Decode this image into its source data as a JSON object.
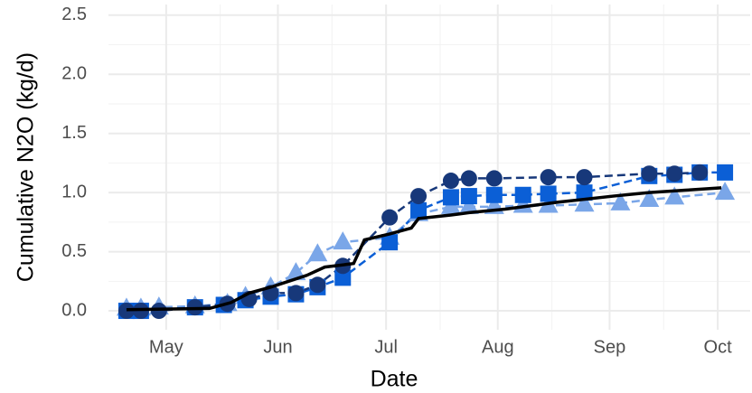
{
  "chart_data": {
    "type": "line",
    "x_label": "Date",
    "y_label": "Cumulative N2O (kg/d)",
    "xlim": [
      105,
      283
    ],
    "ylim": [
      -0.16,
      2.59
    ],
    "xticks": [
      {
        "value": 121,
        "label": "May"
      },
      {
        "value": 152,
        "label": "Jun"
      },
      {
        "value": 182,
        "label": "Jul"
      },
      {
        "value": 213,
        "label": "Aug"
      },
      {
        "value": 244,
        "label": "Sep"
      },
      {
        "value": 274,
        "label": "Oct"
      }
    ],
    "xticks_minor": [
      136,
      167,
      197,
      228,
      259
    ],
    "yticks": [
      {
        "value": 0,
        "label": "0.0"
      },
      {
        "value": 0.5,
        "label": "0.5"
      },
      {
        "value": 1,
        "label": "1.0"
      },
      {
        "value": 1.5,
        "label": "1.5"
      },
      {
        "value": 2,
        "label": "2.0"
      },
      {
        "value": 2.5,
        "label": "2.5"
      }
    ],
    "yticks_minor": [
      0.25,
      0.75,
      1.25,
      1.75,
      2.25
    ],
    "grid": true,
    "series": [
      {
        "color": "#7aa6e8",
        "marker": "triangle",
        "dash": true,
        "x": [
          110,
          114,
          119,
          129,
          138,
          143,
          150,
          157,
          163,
          170,
          183,
          191,
          200,
          205,
          212,
          220,
          227,
          237,
          247,
          255,
          262,
          276
        ],
        "values": [
          0.02,
          0.02,
          0.03,
          0.04,
          0.06,
          0.12,
          0.2,
          0.32,
          0.48,
          0.58,
          0.62,
          0.82,
          0.88,
          0.88,
          0.88,
          0.89,
          0.89,
          0.9,
          0.91,
          0.94,
          0.96,
          1.0
        ]
      },
      {
        "color": "#0b5fd6",
        "marker": "square",
        "dash": true,
        "x": [
          110,
          114,
          129,
          137,
          143,
          150,
          157,
          163,
          170,
          183,
          191,
          200,
          205,
          212,
          220,
          227,
          237,
          255,
          262,
          269,
          276
        ],
        "values": [
          0.0,
          0.0,
          0.03,
          0.05,
          0.09,
          0.12,
          0.14,
          0.2,
          0.28,
          0.58,
          0.85,
          0.96,
          0.97,
          0.98,
          0.98,
          0.99,
          1.0,
          1.14,
          1.15,
          1.17,
          1.17
        ]
      },
      {
        "color": "#17387a",
        "marker": "circle",
        "dash": true,
        "x": [
          110,
          114,
          119,
          129,
          138,
          144,
          150,
          157,
          163,
          170,
          183,
          191,
          200,
          205,
          212,
          227,
          237,
          255,
          262,
          269
        ],
        "values": [
          0.0,
          0.0,
          0.0,
          0.03,
          0.06,
          0.1,
          0.15,
          0.15,
          0.22,
          0.38,
          0.79,
          0.97,
          1.1,
          1.12,
          1.12,
          1.13,
          1.13,
          1.16,
          1.16,
          1.17
        ]
      },
      {
        "color": "#000000",
        "marker": "none",
        "dash": false,
        "x": [
          110,
          133,
          139,
          144,
          150,
          155,
          160,
          165,
          173,
          176,
          183,
          189,
          191,
          200,
          205,
          215,
          230,
          245,
          255,
          265,
          275
        ],
        "values": [
          0.01,
          0.02,
          0.07,
          0.15,
          0.2,
          0.25,
          0.3,
          0.37,
          0.4,
          0.6,
          0.65,
          0.7,
          0.78,
          0.81,
          0.83,
          0.86,
          0.92,
          0.97,
          1.0,
          1.02,
          1.04
        ]
      }
    ]
  }
}
